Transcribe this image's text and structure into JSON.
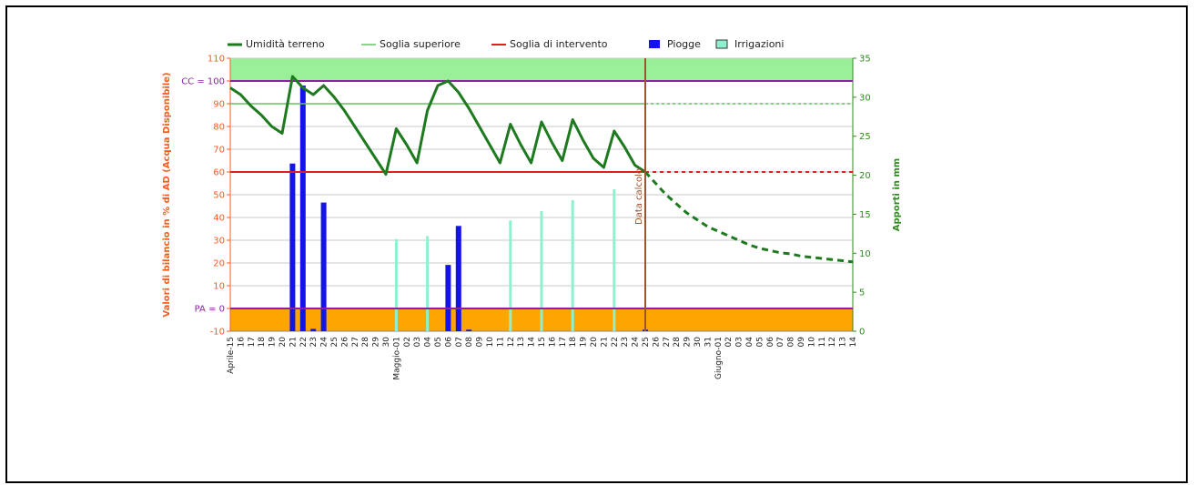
{
  "chart_data": {
    "type": "line",
    "legend": {
      "placement": "top",
      "items": [
        {
          "label": "Umidità terreno",
          "color": "#1e7a1e",
          "kind": "line-thick"
        },
        {
          "label": "Soglia superiore",
          "color": "#66c266",
          "kind": "line-thin"
        },
        {
          "label": "Soglia di intervento",
          "color": "#e02020",
          "kind": "line"
        },
        {
          "label": "Piogge",
          "color": "#1414e6",
          "kind": "box"
        },
        {
          "label": "Irrigazioni",
          "color": "#8ef0cf",
          "kind": "box-outline"
        }
      ]
    },
    "y_left": {
      "label": "Valori di bilancio in % di AD (Acqua Disponibile)",
      "range": [
        -10,
        110
      ],
      "ticks": [
        110,
        100,
        90,
        80,
        70,
        60,
        50,
        40,
        30,
        20,
        10,
        0,
        -10
      ],
      "tick_labels": [
        "110",
        "CC = 100",
        "90",
        "80",
        "70",
        "60",
        "50",
        "40",
        "30",
        "20",
        "10",
        "PA = 0",
        "-10"
      ],
      "color": "#ff5a1f"
    },
    "y_right": {
      "label": "Apporti in mm",
      "range": [
        0,
        35
      ],
      "ticks": [
        0,
        5,
        10,
        15,
        20,
        25,
        30,
        35
      ],
      "color": "#2e8b1e"
    },
    "x_labels": [
      "Aprile-15",
      "16",
      "17",
      "18",
      "19",
      "20",
      "21",
      "22",
      "23",
      "24",
      "25",
      "26",
      "27",
      "28",
      "29",
      "30",
      "Maggio-01",
      "02",
      "03",
      "04",
      "05",
      "06",
      "07",
      "08",
      "09",
      "10",
      "11",
      "12",
      "13",
      "14",
      "15",
      "16",
      "17",
      "18",
      "19",
      "20",
      "21",
      "22",
      "23",
      "24",
      "25",
      "26",
      "27",
      "28",
      "29",
      "30",
      "31",
      "Giugno-01",
      "02",
      "03",
      "04",
      "05",
      "06",
      "07",
      "08",
      "09",
      "10",
      "11",
      "12",
      "13",
      "14"
    ],
    "bands": [
      {
        "from": 100,
        "to": 110,
        "color": "#99f099"
      },
      {
        "from": -10,
        "to": 0,
        "color": "#ffa500"
      }
    ],
    "reference_lines": [
      {
        "name": "CC",
        "value": 100,
        "color": "#8b1fa5"
      },
      {
        "name": "PA",
        "value": 0,
        "color": "#8b1fa5"
      }
    ],
    "thresholds": {
      "upper": 90,
      "intervention": 60,
      "upper_color": "#66c266",
      "intervention_color": "#e02020"
    },
    "calc_date": {
      "index": 40,
      "label": "Data calcolo",
      "color": "#a0522d"
    },
    "series": [
      {
        "name": "Umidità terreno",
        "color": "#1e7a1e",
        "values": [
          97,
          94,
          89,
          85,
          80,
          77,
          102,
          97,
          94,
          98,
          93,
          87,
          80,
          73,
          66,
          59,
          79,
          72,
          64,
          87,
          98,
          100,
          95,
          88,
          80,
          72,
          64,
          81,
          72,
          64,
          82,
          73,
          65,
          83,
          74,
          66,
          62,
          78,
          71,
          63,
          60
        ]
      },
      {
        "name": "Umidità terreno (previsione)",
        "color": "#1e7a1e",
        "style": "dashed",
        "start_index": 40,
        "values": [
          60,
          55,
          50,
          46,
          42,
          39,
          36,
          34,
          32,
          30,
          28,
          26.5,
          25.5,
          24.5,
          24,
          23,
          22.5,
          22,
          21.5,
          21,
          20.5
        ]
      },
      {
        "name": "Piogge",
        "axis": "right",
        "type": "bar",
        "color": "#1414e6",
        "points": [
          [
            6,
            21.5
          ],
          [
            7,
            31.5
          ],
          [
            8,
            0.3
          ],
          [
            9,
            16.5
          ],
          [
            21,
            8.5
          ],
          [
            22,
            13.5
          ],
          [
            23,
            0.2
          ],
          [
            40,
            0.2
          ]
        ]
      },
      {
        "name": "Irrigazioni",
        "axis": "right",
        "type": "bar",
        "color": "#8ef0cf",
        "points": [
          [
            16,
            11.8
          ],
          [
            19,
            12.2
          ],
          [
            27,
            14.2
          ],
          [
            30,
            15.4
          ],
          [
            33,
            16.8
          ],
          [
            37,
            18.2
          ]
        ]
      }
    ],
    "projection": {
      "upper_dashed": true,
      "intervention_dashed": true
    }
  }
}
